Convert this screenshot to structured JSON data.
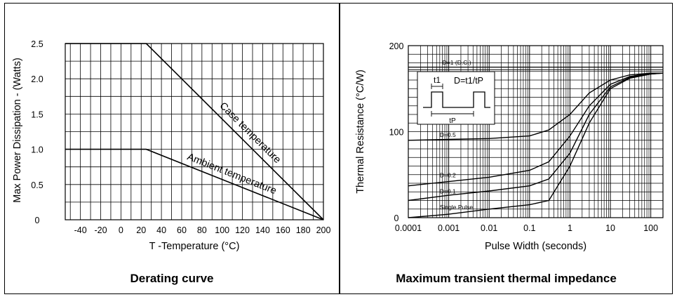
{
  "chart_data": [
    {
      "type": "line",
      "caption": "Derating curve",
      "xlabel": "T -Temperature (°C)",
      "ylabel": "Max Power Dissipation - (Watts)",
      "xlim": [
        -55,
        200
      ],
      "ylim": [
        0,
        2.5
      ],
      "x_ticks": [
        "-40",
        "-20",
        "0",
        "20",
        "40",
        "60",
        "80",
        "100",
        "120",
        "140",
        "160",
        "180",
        "200"
      ],
      "y_ticks": [
        "0",
        "0.5",
        "1.0",
        "1.5",
        "2.0",
        "2.5"
      ],
      "grid": true,
      "series": [
        {
          "name": "Case temperature",
          "x": [
            -55,
            25,
            200
          ],
          "y": [
            2.5,
            2.5,
            0
          ]
        },
        {
          "name": "Ambient temperature",
          "x": [
            -55,
            25,
            200
          ],
          "y": [
            1.0,
            1.0,
            0
          ]
        }
      ]
    },
    {
      "type": "line",
      "caption": "Maximum transient thermal impedance",
      "xlabel": "Pulse Width (seconds)",
      "ylabel": "Thermal Resistance (°C/W)",
      "x_scale": "log",
      "xlim": [
        0.0001,
        200
      ],
      "ylim": [
        0,
        200
      ],
      "x_ticks": [
        "0.0001",
        "0.001",
        "0.01",
        "0.1",
        "1",
        "10",
        "100"
      ],
      "y_ticks": [
        "0",
        "100",
        "200"
      ],
      "grid": true,
      "inset_labels": {
        "t1": "t1",
        "tp": "tP",
        "formula": "D=t1/tP"
      },
      "series": [
        {
          "name": "D=1 (D.C.)",
          "x": [
            0.0001,
            200
          ],
          "y": [
            175,
            175
          ]
        },
        {
          "name": "D=0.5",
          "x": [
            0.0001,
            0.001,
            0.01,
            0.1,
            0.3,
            1,
            3,
            10,
            30,
            100,
            200
          ],
          "y": [
            90,
            91,
            92,
            95,
            102,
            120,
            145,
            160,
            166,
            168,
            168
          ]
        },
        {
          "name": "D=0.2",
          "x": [
            0.0001,
            0.001,
            0.01,
            0.1,
            0.3,
            1,
            3,
            10,
            30,
            100,
            200
          ],
          "y": [
            37,
            42,
            47,
            55,
            65,
            95,
            130,
            155,
            164,
            168,
            168
          ]
        },
        {
          "name": "D=0.1",
          "x": [
            0.0001,
            0.001,
            0.01,
            0.1,
            0.3,
            1,
            3,
            10,
            30,
            100,
            200
          ],
          "y": [
            20,
            26,
            31,
            37,
            45,
            75,
            120,
            152,
            163,
            167,
            168
          ]
        },
        {
          "name": "Single Pulse",
          "x": [
            0.0001,
            0.001,
            0.01,
            0.1,
            0.3,
            1,
            3,
            10,
            30,
            100,
            200
          ],
          "y": [
            0,
            4,
            10,
            15,
            20,
            60,
            110,
            150,
            162,
            167,
            168
          ]
        }
      ]
    }
  ]
}
